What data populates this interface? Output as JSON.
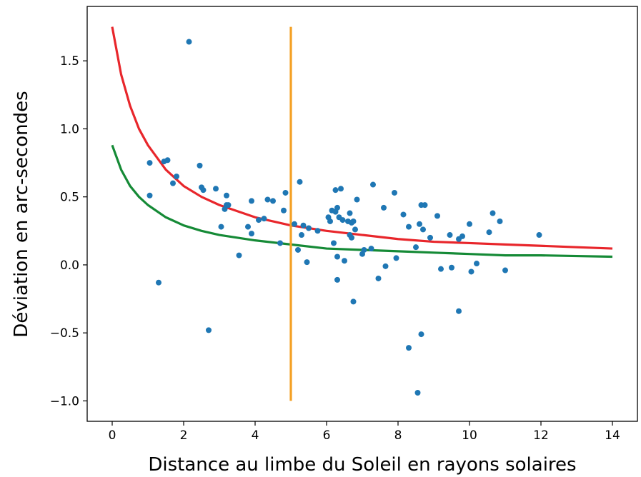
{
  "chart_data": {
    "type": "scatter",
    "title": "",
    "xlabel": "Distance au limbe du Soleil en rayons solaires",
    "ylabel": "Déviation en arc-secondes",
    "xlim": [
      -0.7,
      14.7
    ],
    "ylim": [
      -1.15,
      1.9
    ],
    "xticks": [
      0,
      2,
      4,
      6,
      8,
      10,
      12,
      14
    ],
    "xtick_labels": [
      "0",
      "2",
      "4",
      "6",
      "8",
      "10",
      "12",
      "14"
    ],
    "yticks": [
      -1.0,
      -0.5,
      0.0,
      0.5,
      1.0,
      1.5
    ],
    "ytick_labels": [
      "−1.0",
      "−0.5",
      "0.0",
      "0.5",
      "1.0",
      "1.5"
    ],
    "grid": false,
    "series": [
      {
        "kind": "scatter",
        "color": "#1f77b4",
        "points": [
          [
            1.05,
            0.75
          ],
          [
            1.05,
            0.51
          ],
          [
            1.3,
            -0.13
          ],
          [
            1.45,
            0.76
          ],
          [
            1.55,
            0.77
          ],
          [
            1.7,
            0.6
          ],
          [
            1.8,
            0.65
          ],
          [
            2.15,
            1.64
          ],
          [
            2.45,
            0.73
          ],
          [
            2.5,
            0.57
          ],
          [
            2.55,
            0.55
          ],
          [
            2.7,
            -0.48
          ],
          [
            2.9,
            0.56
          ],
          [
            3.05,
            0.28
          ],
          [
            3.15,
            0.41
          ],
          [
            3.2,
            0.44
          ],
          [
            3.2,
            0.51
          ],
          [
            3.25,
            0.44
          ],
          [
            3.55,
            0.07
          ],
          [
            3.8,
            0.28
          ],
          [
            3.9,
            0.23
          ],
          [
            3.9,
            0.47
          ],
          [
            4.1,
            0.33
          ],
          [
            4.25,
            0.34
          ],
          [
            4.35,
            0.48
          ],
          [
            4.5,
            0.47
          ],
          [
            4.7,
            0.16
          ],
          [
            4.8,
            0.4
          ],
          [
            4.85,
            0.53
          ],
          [
            5.1,
            0.3
          ],
          [
            5.2,
            0.11
          ],
          [
            5.25,
            0.61
          ],
          [
            5.3,
            0.22
          ],
          [
            5.35,
            0.29
          ],
          [
            5.45,
            0.02
          ],
          [
            5.5,
            0.27
          ],
          [
            5.75,
            0.25
          ],
          [
            6.05,
            0.35
          ],
          [
            6.1,
            0.32
          ],
          [
            6.15,
            0.4
          ],
          [
            6.2,
            0.16
          ],
          [
            6.25,
            0.39
          ],
          [
            6.25,
            0.55
          ],
          [
            6.3,
            0.42
          ],
          [
            6.3,
            -0.11
          ],
          [
            6.3,
            0.06
          ],
          [
            6.35,
            0.35
          ],
          [
            6.4,
            0.56
          ],
          [
            6.45,
            0.33
          ],
          [
            6.5,
            0.03
          ],
          [
            6.6,
            0.32
          ],
          [
            6.65,
            0.38
          ],
          [
            6.65,
            0.22
          ],
          [
            6.7,
            0.31
          ],
          [
            6.7,
            0.2
          ],
          [
            6.75,
            -0.27
          ],
          [
            6.75,
            0.32
          ],
          [
            6.8,
            0.26
          ],
          [
            6.85,
            0.48
          ],
          [
            7.0,
            0.08
          ],
          [
            7.05,
            0.11
          ],
          [
            7.25,
            0.12
          ],
          [
            7.3,
            0.59
          ],
          [
            7.45,
            -0.1
          ],
          [
            7.6,
            0.42
          ],
          [
            7.65,
            -0.01
          ],
          [
            7.9,
            0.53
          ],
          [
            7.95,
            0.05
          ],
          [
            8.15,
            0.37
          ],
          [
            8.3,
            0.28
          ],
          [
            8.3,
            -0.61
          ],
          [
            8.5,
            0.13
          ],
          [
            8.55,
            -0.94
          ],
          [
            8.6,
            0.3
          ],
          [
            8.65,
            0.44
          ],
          [
            8.65,
            -0.51
          ],
          [
            8.7,
            0.26
          ],
          [
            8.75,
            0.44
          ],
          [
            8.9,
            0.2
          ],
          [
            9.1,
            0.36
          ],
          [
            9.2,
            -0.03
          ],
          [
            9.45,
            0.22
          ],
          [
            9.5,
            -0.02
          ],
          [
            9.7,
            0.19
          ],
          [
            9.7,
            -0.34
          ],
          [
            9.8,
            0.21
          ],
          [
            10.0,
            0.3
          ],
          [
            10.05,
            -0.05
          ],
          [
            10.2,
            0.01
          ],
          [
            10.55,
            0.24
          ],
          [
            10.65,
            0.38
          ],
          [
            10.85,
            0.32
          ],
          [
            11.0,
            -0.04
          ],
          [
            11.95,
            0.22
          ]
        ]
      },
      {
        "kind": "curve",
        "color": "#e8262b",
        "points": [
          [
            0,
            1.75
          ],
          [
            0.25,
            1.4
          ],
          [
            0.5,
            1.17
          ],
          [
            0.75,
            1.0
          ],
          [
            1.0,
            0.88
          ],
          [
            1.5,
            0.7
          ],
          [
            2.0,
            0.58
          ],
          [
            2.5,
            0.5
          ],
          [
            3.0,
            0.44
          ],
          [
            4.0,
            0.35
          ],
          [
            5.0,
            0.29
          ],
          [
            6.0,
            0.25
          ],
          [
            7.0,
            0.22
          ],
          [
            8.0,
            0.19
          ],
          [
            9.0,
            0.17
          ],
          [
            10.0,
            0.16
          ],
          [
            11.0,
            0.15
          ],
          [
            12.0,
            0.14
          ],
          [
            13.0,
            0.13
          ],
          [
            14.0,
            0.12
          ]
        ]
      },
      {
        "kind": "curve",
        "color": "#158a36",
        "points": [
          [
            0,
            0.88
          ],
          [
            0.25,
            0.7
          ],
          [
            0.5,
            0.58
          ],
          [
            0.75,
            0.5
          ],
          [
            1.0,
            0.44
          ],
          [
            1.5,
            0.35
          ],
          [
            2.0,
            0.29
          ],
          [
            2.5,
            0.25
          ],
          [
            3.0,
            0.22
          ],
          [
            4.0,
            0.18
          ],
          [
            5.0,
            0.15
          ],
          [
            6.0,
            0.12
          ],
          [
            7.0,
            0.11
          ],
          [
            8.0,
            0.1
          ],
          [
            9.0,
            0.09
          ],
          [
            10.0,
            0.08
          ],
          [
            11.0,
            0.07
          ],
          [
            12.0,
            0.07
          ],
          [
            13.0,
            0.065
          ],
          [
            14.0,
            0.06
          ]
        ]
      },
      {
        "kind": "vline",
        "color": "#f4a024",
        "x": 5,
        "y": [
          -1.0,
          1.75
        ]
      }
    ]
  }
}
